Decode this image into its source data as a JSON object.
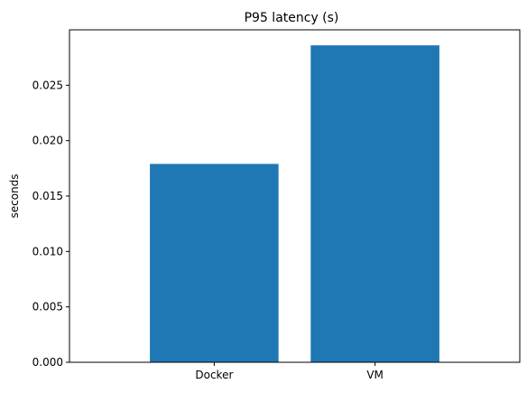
{
  "chart_data": {
    "type": "bar",
    "title": "P95 latency (s)",
    "xlabel": "",
    "ylabel": "seconds",
    "categories": [
      "Docker",
      "VM"
    ],
    "values": [
      0.0179,
      0.0286
    ],
    "ylim": [
      0,
      0.03
    ],
    "yticks": [
      0.0,
      0.005,
      0.01,
      0.015,
      0.02,
      0.025
    ],
    "ytick_labels": [
      "0.000",
      "0.005",
      "0.010",
      "0.015",
      "0.020",
      "0.025"
    ],
    "grid": false,
    "legend": "none",
    "bar_color": "#1f77b4"
  }
}
